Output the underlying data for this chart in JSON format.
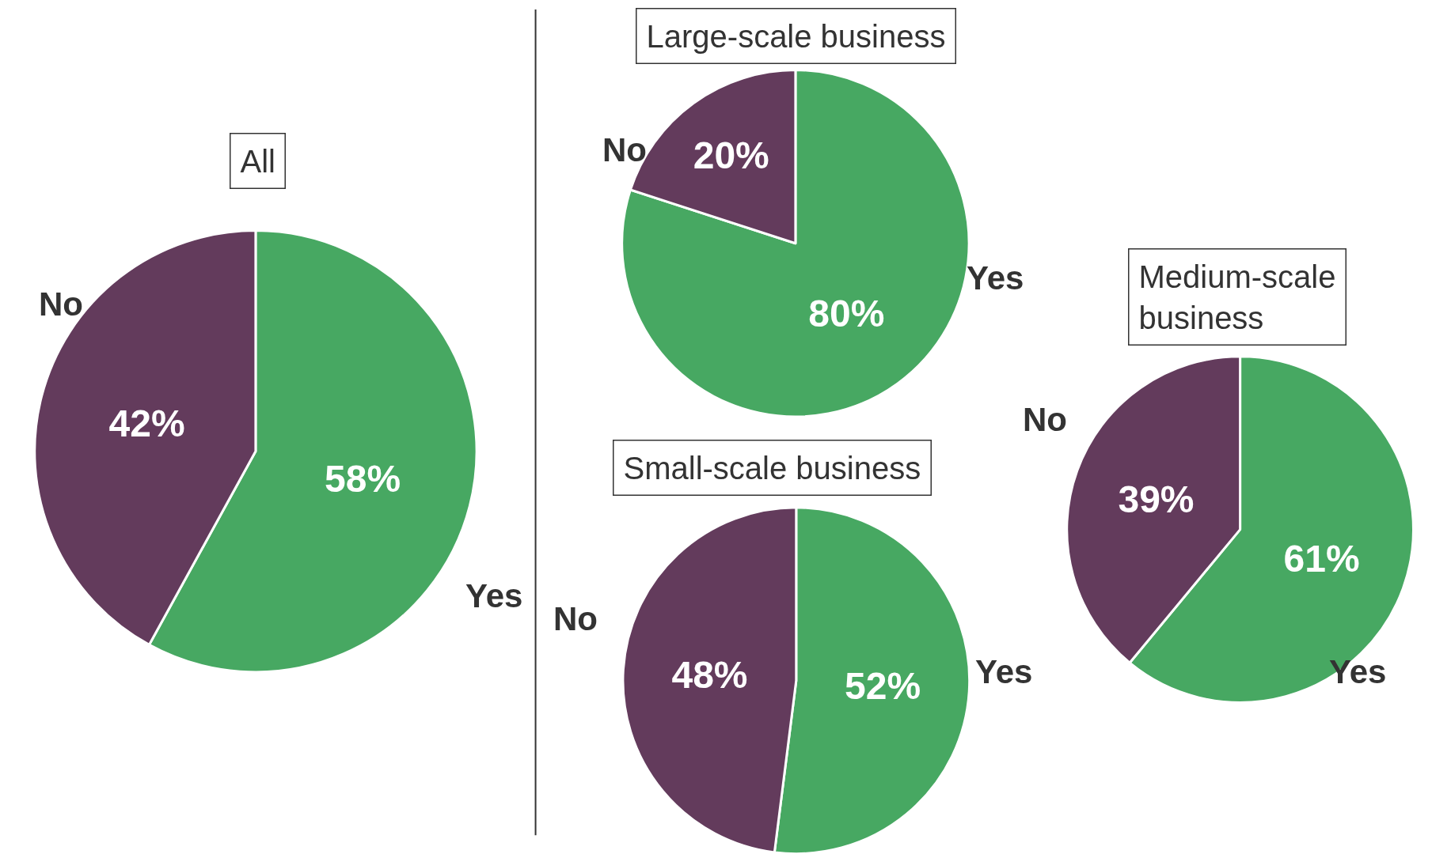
{
  "chart_data": [
    {
      "type": "pie",
      "title": "All",
      "categories": [
        "Yes",
        "No"
      ],
      "values": [
        58,
        42
      ],
      "colors": [
        "#47a862",
        "#633b5c"
      ],
      "value_labels": [
        "58%",
        "42%"
      ]
    },
    {
      "type": "pie",
      "title": "Large-scale business",
      "categories": [
        "Yes",
        "No"
      ],
      "values": [
        80,
        20
      ],
      "colors": [
        "#47a862",
        "#633b5c"
      ],
      "value_labels": [
        "80%",
        "20%"
      ]
    },
    {
      "type": "pie",
      "title": "Small-scale business",
      "categories": [
        "Yes",
        "No"
      ],
      "values": [
        52,
        48
      ],
      "colors": [
        "#47a862",
        "#633b5c"
      ],
      "value_labels": [
        "52%",
        "48%"
      ]
    },
    {
      "type": "pie",
      "title": "Medium-scale\nbusiness",
      "categories": [
        "Yes",
        "No"
      ],
      "values": [
        61,
        39
      ],
      "colors": [
        "#47a862",
        "#633b5c"
      ],
      "value_labels": [
        "61%",
        "39%"
      ]
    }
  ]
}
